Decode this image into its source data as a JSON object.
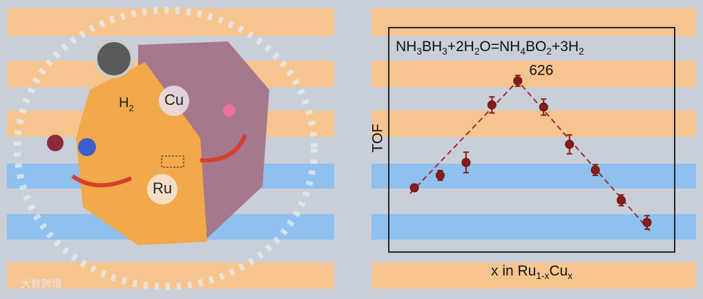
{
  "chart_data": {
    "type": "scatter",
    "title": [
      {
        "text": "NH"
      },
      {
        "text": "3",
        "sub": true
      },
      {
        "text": "BH"
      },
      {
        "text": "3",
        "sub": true
      },
      {
        "text": "+2H"
      },
      {
        "text": "2",
        "sub": true
      },
      {
        "text": "O=NH"
      },
      {
        "text": "4",
        "sub": true
      },
      {
        "text": "BO"
      },
      {
        "text": "2",
        "sub": true
      },
      {
        "text": "+3H"
      },
      {
        "text": "2",
        "sub": true
      }
    ],
    "ylabel": "TOF",
    "xlabel": [
      {
        "text": "x in Ru"
      },
      {
        "text": "1-x",
        "sub": true
      },
      {
        "text": "Cu"
      },
      {
        "text": "x",
        "sub": true
      }
    ],
    "categories": [
      null,
      null,
      null,
      null,
      null,
      null,
      null,
      null,
      null,
      null
    ],
    "series": [
      {
        "color": "#8b1a1a",
        "values": [
          230,
          276,
          324,
          537,
          626,
          529,
          391,
          296,
          184,
          102
        ],
        "errors": [
          12,
          18,
          38,
          30,
          20,
          30,
          35,
          20,
          20,
          25
        ]
      }
    ],
    "ylim": [
      0,
      818
    ]
  },
  "illustration": {
    "labels": [
      [
        {
          "text": "H"
        },
        {
          "text": "2",
          "sub": true
        }
      ],
      [
        {
          "text": "Cu"
        }
      ],
      [
        {
          "text": "Ru"
        }
      ]
    ],
    "watermark": "大数跨境"
  }
}
